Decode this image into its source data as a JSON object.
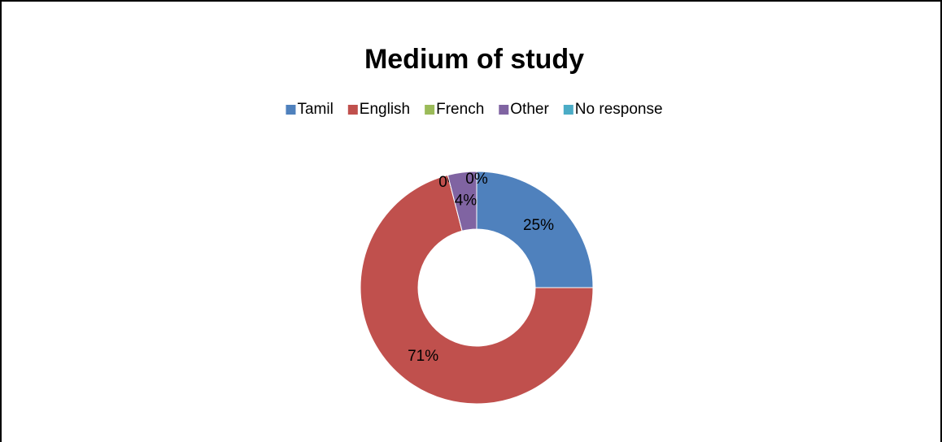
{
  "chart_data": {
    "type": "donut",
    "title": "Medium of study",
    "categories": [
      "Tamil",
      "English",
      "French",
      "Other",
      "No response"
    ],
    "values": [
      25,
      71,
      0,
      4,
      0
    ],
    "value_labels": [
      "25%",
      "71%",
      "0%",
      "4%",
      "0%"
    ],
    "colors": [
      "#4f81bd",
      "#c0504d",
      "#9bbb59",
      "#8064a2",
      "#4bacc6"
    ],
    "legend": "top"
  }
}
